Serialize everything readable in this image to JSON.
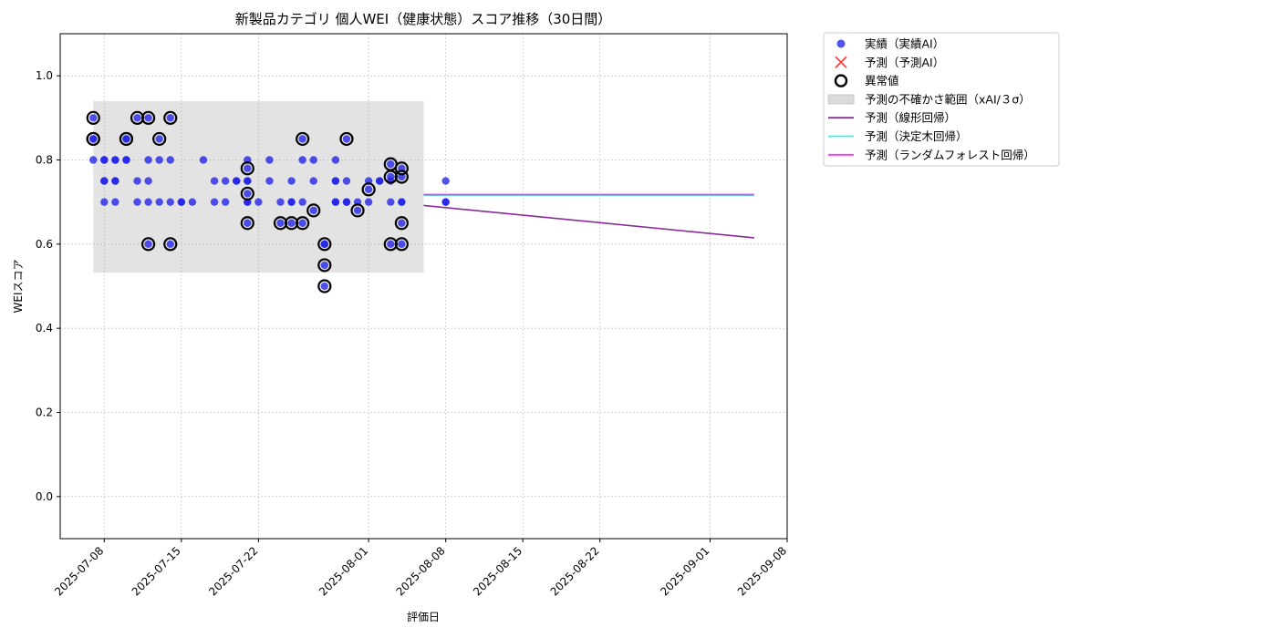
{
  "chart_data": {
    "type": "scatter",
    "title": "新製品カテゴリ 個人WEI（健康状態）スコア推移（30日間）",
    "xlabel": "評価日",
    "ylabel": "WEIスコア",
    "xlim": [
      "2025-07-04",
      "2025-09-08"
    ],
    "ylim": [
      -0.1,
      1.1
    ],
    "x_ticks": [
      "2025-07-08",
      "2025-07-15",
      "2025-07-22",
      "2025-08-01",
      "2025-08-08",
      "2025-08-15",
      "2025-08-22",
      "2025-09-01",
      "2025-09-08"
    ],
    "y_ticks": [
      0.0,
      0.2,
      0.4,
      0.6,
      0.8,
      1.0
    ],
    "y_tick_labels": [
      "0.0",
      "0.2",
      "0.4",
      "0.6",
      "0.8",
      "1.0"
    ],
    "grid": true,
    "legend_position": "outside upper-right",
    "legend": [
      {
        "key": "actual",
        "label": "実績（実績AI）",
        "marker": "dot"
      },
      {
        "key": "predicted",
        "label": "予測（予測AI）",
        "marker": "x"
      },
      {
        "key": "anomaly",
        "label": "異常値",
        "marker": "ring"
      },
      {
        "key": "band",
        "label": "予測の不確かさ範囲（xAI/３σ）",
        "marker": "patch"
      },
      {
        "key": "linear",
        "label": "予測（線形回帰）",
        "marker": "line"
      },
      {
        "key": "tree",
        "label": "予測（決定木回帰）",
        "marker": "line"
      },
      {
        "key": "forest",
        "label": "予測（ランダムフォレスト回帰）",
        "marker": "line"
      }
    ],
    "colors": {
      "actual": "#2020e8",
      "predicted": "#ff4040",
      "anomaly": "#000000",
      "band": "#b0b0b0",
      "linear": "#8b2a9b",
      "tree": "#33f0f0",
      "forest": "#ff33ff",
      "grid": "#c8c8c8"
    },
    "uncertainty_band": {
      "x_start": "2025-07-07",
      "x_end": "2025-08-06",
      "y_low": 0.532,
      "y_high": 0.94
    },
    "series": [
      {
        "name": "実績（実績AI）",
        "points": [
          [
            "2025-07-07",
            0.8
          ],
          [
            "2025-07-07",
            0.85
          ],
          [
            "2025-07-07",
            0.9
          ],
          [
            "2025-07-07",
            0.85
          ],
          [
            "2025-07-08",
            0.75
          ],
          [
            "2025-07-08",
            0.7
          ],
          [
            "2025-07-08",
            0.8
          ],
          [
            "2025-07-08",
            0.75
          ],
          [
            "2025-07-08",
            0.8
          ],
          [
            "2025-07-09",
            0.75
          ],
          [
            "2025-07-09",
            0.7
          ],
          [
            "2025-07-09",
            0.8
          ],
          [
            "2025-07-09",
            0.75
          ],
          [
            "2025-07-09",
            0.8
          ],
          [
            "2025-07-10",
            0.85
          ],
          [
            "2025-07-10",
            0.8
          ],
          [
            "2025-07-10",
            0.85
          ],
          [
            "2025-07-10",
            0.8
          ],
          [
            "2025-07-11",
            0.9
          ],
          [
            "2025-07-11",
            0.75
          ],
          [
            "2025-07-11",
            0.7
          ],
          [
            "2025-07-12",
            0.8
          ],
          [
            "2025-07-12",
            0.9
          ],
          [
            "2025-07-12",
            0.7
          ],
          [
            "2025-07-12",
            0.75
          ],
          [
            "2025-07-12",
            0.6
          ],
          [
            "2025-07-13",
            0.7
          ],
          [
            "2025-07-13",
            0.85
          ],
          [
            "2025-07-13",
            0.8
          ],
          [
            "2025-07-14",
            0.8
          ],
          [
            "2025-07-14",
            0.9
          ],
          [
            "2025-07-14",
            0.6
          ],
          [
            "2025-07-14",
            0.7
          ],
          [
            "2025-07-15",
            0.7
          ],
          [
            "2025-07-15",
            0.7
          ],
          [
            "2025-07-16",
            0.7
          ],
          [
            "2025-07-17",
            0.8
          ],
          [
            "2025-07-18",
            0.75
          ],
          [
            "2025-07-18",
            0.7
          ],
          [
            "2025-07-19",
            0.75
          ],
          [
            "2025-07-19",
            0.7
          ],
          [
            "2025-07-20",
            0.75
          ],
          [
            "2025-07-20",
            0.75
          ],
          [
            "2025-07-21",
            0.8
          ],
          [
            "2025-07-21",
            0.75
          ],
          [
            "2025-07-21",
            0.7
          ],
          [
            "2025-07-21",
            0.78
          ],
          [
            "2025-07-21",
            0.72
          ],
          [
            "2025-07-21",
            0.65
          ],
          [
            "2025-07-21",
            0.75
          ],
          [
            "2025-07-21",
            0.7
          ],
          [
            "2025-07-22",
            0.7
          ],
          [
            "2025-07-23",
            0.8
          ],
          [
            "2025-07-23",
            0.75
          ],
          [
            "2025-07-24",
            0.7
          ],
          [
            "2025-07-24",
            0.65
          ],
          [
            "2025-07-25",
            0.75
          ],
          [
            "2025-07-25",
            0.7
          ],
          [
            "2025-07-25",
            0.65
          ],
          [
            "2025-07-25",
            0.7
          ],
          [
            "2025-07-26",
            0.7
          ],
          [
            "2025-07-26",
            0.65
          ],
          [
            "2025-07-26",
            0.85
          ],
          [
            "2025-07-26",
            0.8
          ],
          [
            "2025-07-27",
            0.8
          ],
          [
            "2025-07-27",
            0.75
          ],
          [
            "2025-07-27",
            0.68
          ],
          [
            "2025-07-28",
            0.6
          ],
          [
            "2025-07-28",
            0.55
          ],
          [
            "2025-07-28",
            0.5
          ],
          [
            "2025-07-28",
            0.6
          ],
          [
            "2025-07-29",
            0.8
          ],
          [
            "2025-07-29",
            0.75
          ],
          [
            "2025-07-29",
            0.7
          ],
          [
            "2025-07-29",
            0.75
          ],
          [
            "2025-07-29",
            0.7
          ],
          [
            "2025-07-30",
            0.75
          ],
          [
            "2025-07-30",
            0.7
          ],
          [
            "2025-07-30",
            0.7
          ],
          [
            "2025-07-30",
            0.85
          ],
          [
            "2025-07-31",
            0.7
          ],
          [
            "2025-07-31",
            0.68
          ],
          [
            "2025-08-01",
            0.7
          ],
          [
            "2025-08-01",
            0.75
          ],
          [
            "2025-08-01",
            0.73
          ],
          [
            "2025-08-02",
            0.75
          ],
          [
            "2025-08-02",
            0.75
          ],
          [
            "2025-08-03",
            0.76
          ],
          [
            "2025-08-03",
            0.6
          ],
          [
            "2025-08-03",
            0.79
          ],
          [
            "2025-08-03",
            0.7
          ],
          [
            "2025-08-03",
            0.75
          ],
          [
            "2025-08-04",
            0.7
          ],
          [
            "2025-08-04",
            0.78
          ],
          [
            "2025-08-04",
            0.76
          ],
          [
            "2025-08-04",
            0.65
          ],
          [
            "2025-08-04",
            0.6
          ],
          [
            "2025-08-04",
            0.7
          ],
          [
            "2025-08-08",
            0.75
          ],
          [
            "2025-08-08",
            0.7
          ],
          [
            "2025-08-08",
            0.7
          ]
        ]
      },
      {
        "name": "異常値",
        "points": [
          [
            "2025-07-07",
            0.85
          ],
          [
            "2025-07-07",
            0.9
          ],
          [
            "2025-07-07",
            0.85
          ],
          [
            "2025-07-10",
            0.85
          ],
          [
            "2025-07-10",
            0.85
          ],
          [
            "2025-07-11",
            0.9
          ],
          [
            "2025-07-12",
            0.9
          ],
          [
            "2025-07-12",
            0.6
          ],
          [
            "2025-07-13",
            0.85
          ],
          [
            "2025-07-14",
            0.9
          ],
          [
            "2025-07-14",
            0.6
          ],
          [
            "2025-07-21",
            0.78
          ],
          [
            "2025-07-21",
            0.72
          ],
          [
            "2025-07-21",
            0.65
          ],
          [
            "2025-07-24",
            0.65
          ],
          [
            "2025-07-25",
            0.65
          ],
          [
            "2025-07-26",
            0.65
          ],
          [
            "2025-07-26",
            0.85
          ],
          [
            "2025-07-27",
            0.68
          ],
          [
            "2025-07-28",
            0.6
          ],
          [
            "2025-07-28",
            0.55
          ],
          [
            "2025-07-28",
            0.5
          ],
          [
            "2025-07-30",
            0.85
          ],
          [
            "2025-07-31",
            0.68
          ],
          [
            "2025-08-01",
            0.73
          ],
          [
            "2025-08-03",
            0.79
          ],
          [
            "2025-08-03",
            0.76
          ],
          [
            "2025-08-03",
            0.6
          ],
          [
            "2025-08-04",
            0.78
          ],
          [
            "2025-08-04",
            0.76
          ],
          [
            "2025-08-04",
            0.65
          ],
          [
            "2025-08-04",
            0.6
          ]
        ]
      },
      {
        "name": "予測（線形回帰）",
        "points": [
          [
            "2025-08-06",
            0.692
          ],
          [
            "2025-09-05",
            0.615
          ]
        ]
      },
      {
        "name": "予測（決定木回帰）",
        "points": [
          [
            "2025-08-06",
            0.716
          ],
          [
            "2025-09-05",
            0.716
          ]
        ]
      },
      {
        "name": "予測（ランダムフォレスト回帰）",
        "points": [
          [
            "2025-08-06",
            0.718
          ],
          [
            "2025-09-05",
            0.718
          ]
        ]
      }
    ]
  }
}
